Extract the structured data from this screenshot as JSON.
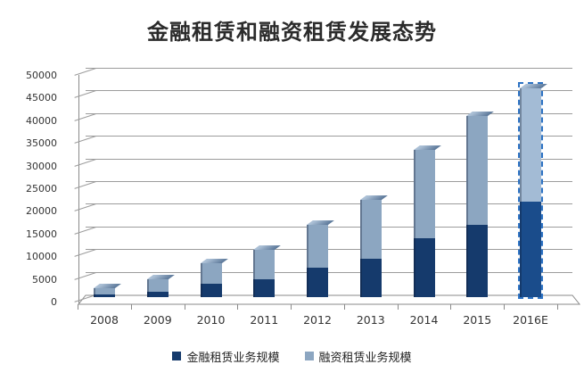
{
  "title": "金融租赁和融资租赁发展态势",
  "legend": [
    {
      "label": "金融租赁业务规模",
      "color": "#153a6c"
    },
    {
      "label": "融资租赁业务规模",
      "color": "#8ca6c1"
    }
  ],
  "chart_data": {
    "type": "bar",
    "stacked": true,
    "title": "金融租赁和融资租赁发展态势",
    "categories": [
      "2008",
      "2009",
      "2010",
      "2011",
      "2012",
      "2013",
      "2014",
      "2015",
      "2016E"
    ],
    "series": [
      {
        "name": "金融租赁业务规模",
        "color": "#153a6c",
        "values": [
          500,
          1200,
          3000,
          4000,
          6500,
          8500,
          13000,
          16000,
          21000
        ]
      },
      {
        "name": "融资租赁业务规模",
        "color": "#8ca6c1",
        "values": [
          1500,
          2800,
          4500,
          6500,
          9500,
          13000,
          19500,
          24000,
          25000
        ]
      }
    ],
    "estimated_category": "2016E",
    "estimated_outline_color": "#2e73c4",
    "ylim": [
      0,
      50000
    ],
    "y_ticks": [
      0,
      5000,
      10000,
      15000,
      20000,
      25000,
      30000,
      35000,
      40000,
      45000,
      50000
    ],
    "grid": true,
    "legend_position": "bottom",
    "style": "3d-stacked-column"
  }
}
